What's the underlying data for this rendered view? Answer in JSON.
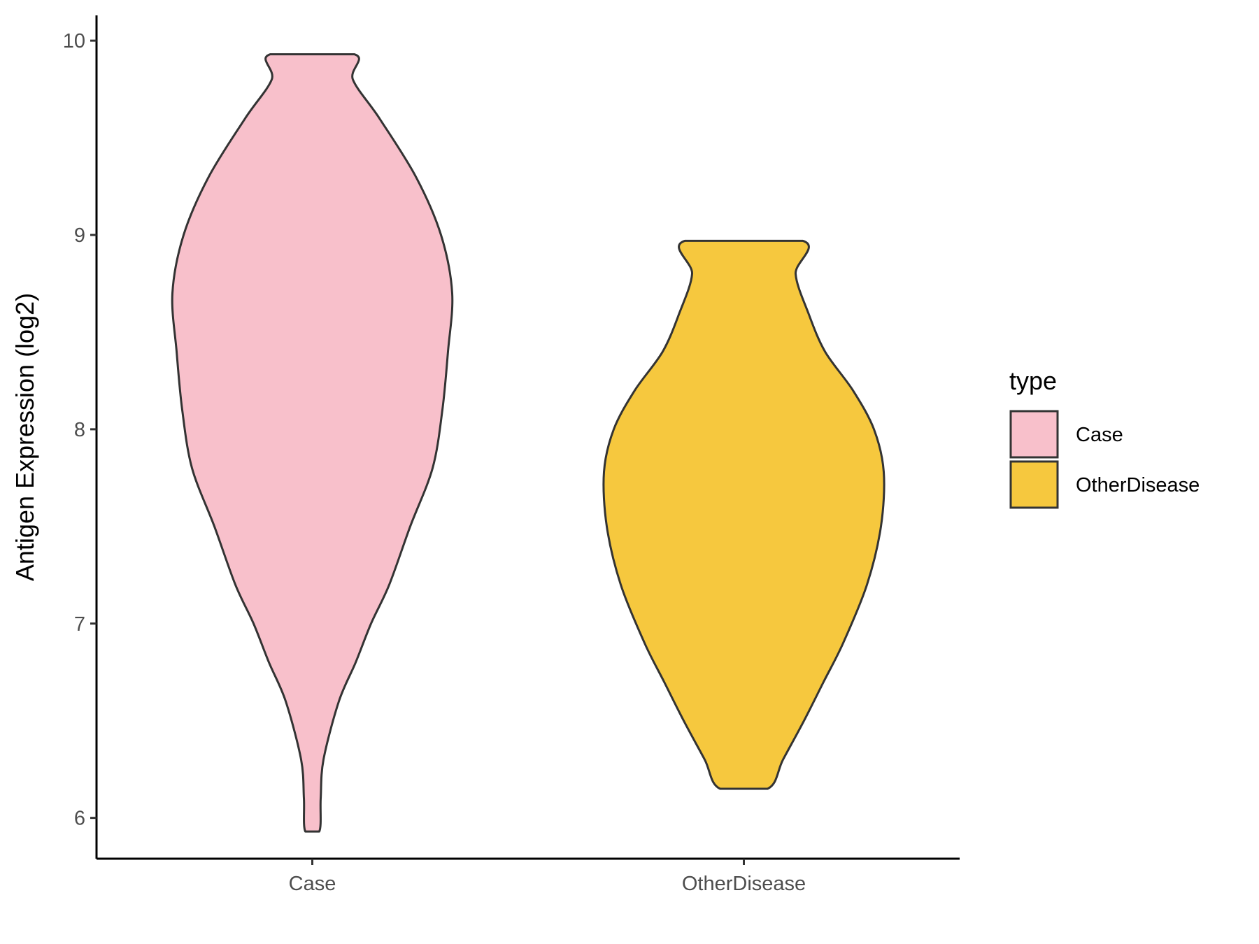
{
  "chart_data": {
    "type": "violin",
    "title": "",
    "xlabel": "",
    "ylabel": "Antigen Expression (log2)",
    "ylim": [
      5.79,
      10.13
    ],
    "yticks": [
      6,
      7,
      8,
      9,
      10
    ],
    "categories": [
      "Case",
      "OtherDisease"
    ],
    "grid": false,
    "legend": {
      "title": "type",
      "position": "right",
      "entries": [
        "Case",
        "OtherDisease"
      ]
    },
    "series": [
      {
        "name": "Case",
        "color": "#F8C0CB",
        "min": 5.93,
        "max": 9.93,
        "density_profile": [
          [
            5.93,
            0.05
          ],
          [
            6.1,
            0.06
          ],
          [
            6.3,
            0.08
          ],
          [
            6.6,
            0.19
          ],
          [
            6.8,
            0.31
          ],
          [
            7.0,
            0.42
          ],
          [
            7.2,
            0.55
          ],
          [
            7.5,
            0.7
          ],
          [
            7.8,
            0.86
          ],
          [
            8.1,
            0.93
          ],
          [
            8.4,
            0.97
          ],
          [
            8.7,
            1.0
          ],
          [
            9.0,
            0.92
          ],
          [
            9.3,
            0.74
          ],
          [
            9.6,
            0.48
          ],
          [
            9.8,
            0.29
          ],
          [
            9.93,
            0.3
          ]
        ]
      },
      {
        "name": "OtherDisease",
        "color": "#F6C83E",
        "min": 6.15,
        "max": 8.97,
        "density_profile": [
          [
            6.15,
            0.17
          ],
          [
            6.3,
            0.28
          ],
          [
            6.5,
            0.43
          ],
          [
            6.7,
            0.57
          ],
          [
            6.9,
            0.71
          ],
          [
            7.2,
            0.88
          ],
          [
            7.5,
            0.98
          ],
          [
            7.78,
            1.0
          ],
          [
            8.0,
            0.93
          ],
          [
            8.2,
            0.78
          ],
          [
            8.4,
            0.58
          ],
          [
            8.6,
            0.46
          ],
          [
            8.8,
            0.37
          ],
          [
            8.97,
            0.42
          ]
        ]
      }
    ]
  }
}
